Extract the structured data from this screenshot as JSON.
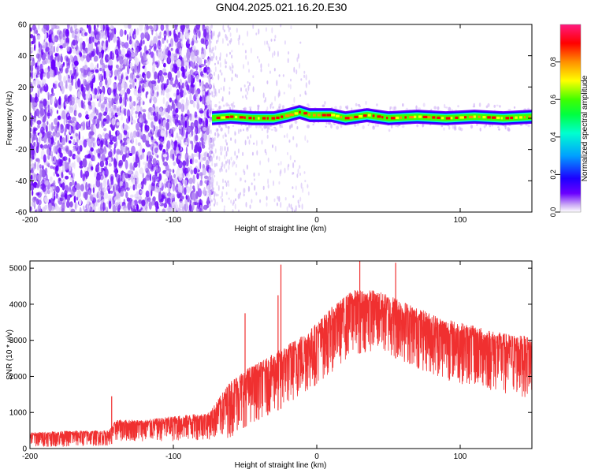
{
  "figure_title": "GN04.2025.021.16.20.E30",
  "chart_data": [
    {
      "type": "heatmap",
      "xlabel": "Height of straight line (km)",
      "ylabel": "Frequency (Hz)",
      "xlim": [
        -200,
        150
      ],
      "ylim": [
        -60,
        60
      ],
      "xticks": [
        -200,
        -100,
        0,
        100
      ],
      "yticks": [
        -60,
        -40,
        -20,
        0,
        20,
        40,
        60
      ],
      "colorbar": {
        "label": "Normalized spectral amplitude",
        "range": [
          0,
          1
        ],
        "ticks": [
          "0.0",
          "0.2",
          "0.4",
          "0.6",
          "0.8"
        ],
        "colors": [
          "#ffffff",
          "#c9a6f5",
          "#6a00ff",
          "#1d00ff",
          "#00a0ff",
          "#00ffd0",
          "#00ff40",
          "#40ff00",
          "#ffff00",
          "#ff9000",
          "#ff0000",
          "#ff1a80"
        ]
      },
      "noise_region": {
        "x_range": [
          -200,
          -73
        ],
        "freq_range": [
          -60,
          60
        ],
        "amplitude": "0.0-0.3 (scattered)"
      },
      "signal_band": {
        "x_range": [
          -73,
          150
        ],
        "center_freq": [
          {
            "x": -73,
            "f": 0
          },
          {
            "x": -60,
            "f": 1
          },
          {
            "x": -45,
            "f": 0
          },
          {
            "x": -30,
            "f": 0
          },
          {
            "x": -20,
            "f": 2
          },
          {
            "x": -12,
            "f": 4
          },
          {
            "x": -5,
            "f": 2
          },
          {
            "x": 10,
            "f": 2
          },
          {
            "x": 20,
            "f": 0
          },
          {
            "x": 35,
            "f": 2
          },
          {
            "x": 50,
            "f": 0
          },
          {
            "x": 70,
            "f": 1
          },
          {
            "x": 90,
            "f": 0
          },
          {
            "x": 110,
            "f": 1
          },
          {
            "x": 130,
            "f": 0
          },
          {
            "x": 150,
            "f": 1
          }
        ],
        "peak_amplitude": 0.95
      }
    },
    {
      "type": "line",
      "xlabel": "Height of straight line (km)",
      "ylabel": "SNR (10 * v/v)",
      "xlim": [
        -200,
        150
      ],
      "ylim": [
        0,
        5200
      ],
      "xticks": [
        -200,
        -100,
        0,
        100
      ],
      "yticks": [
        0,
        1000,
        2000,
        3000,
        4000,
        5000
      ],
      "series": [
        {
          "color": "#f03030",
          "envelope": [
            {
              "x": -200,
              "lo": 50,
              "hi": 450
            },
            {
              "x": -170,
              "lo": 50,
              "hi": 500
            },
            {
              "x": -145,
              "lo": 80,
              "hi": 500
            },
            {
              "x": -140,
              "lo": 200,
              "hi": 800
            },
            {
              "x": -120,
              "lo": 200,
              "hi": 800
            },
            {
              "x": -100,
              "lo": 200,
              "hi": 900
            },
            {
              "x": -75,
              "lo": 250,
              "hi": 1000
            },
            {
              "x": -60,
              "lo": 300,
              "hi": 1900
            },
            {
              "x": -50,
              "lo": 600,
              "hi": 2200
            },
            {
              "x": -35,
              "lo": 900,
              "hi": 2500
            },
            {
              "x": -20,
              "lo": 1200,
              "hi": 2900
            },
            {
              "x": -5,
              "lo": 1600,
              "hi": 3300
            },
            {
              "x": 10,
              "lo": 2100,
              "hi": 3900
            },
            {
              "x": 25,
              "lo": 2600,
              "hi": 4400
            },
            {
              "x": 40,
              "lo": 2700,
              "hi": 4400
            },
            {
              "x": 55,
              "lo": 2500,
              "hi": 4200
            },
            {
              "x": 70,
              "lo": 2200,
              "hi": 3900
            },
            {
              "x": 90,
              "lo": 1900,
              "hi": 3600
            },
            {
              "x": 110,
              "lo": 1700,
              "hi": 3400
            },
            {
              "x": 130,
              "lo": 1500,
              "hi": 3200
            },
            {
              "x": 150,
              "lo": 1400,
              "hi": 3100
            }
          ],
          "spikes": [
            {
              "x": -143,
              "y": 1450
            },
            {
              "x": -50,
              "y": 3750
            },
            {
              "x": -27,
              "y": 4250
            },
            {
              "x": -25,
              "y": 5100
            },
            {
              "x": 30,
              "y": 5200
            },
            {
              "x": 55,
              "y": 5150
            }
          ]
        }
      ]
    }
  ]
}
